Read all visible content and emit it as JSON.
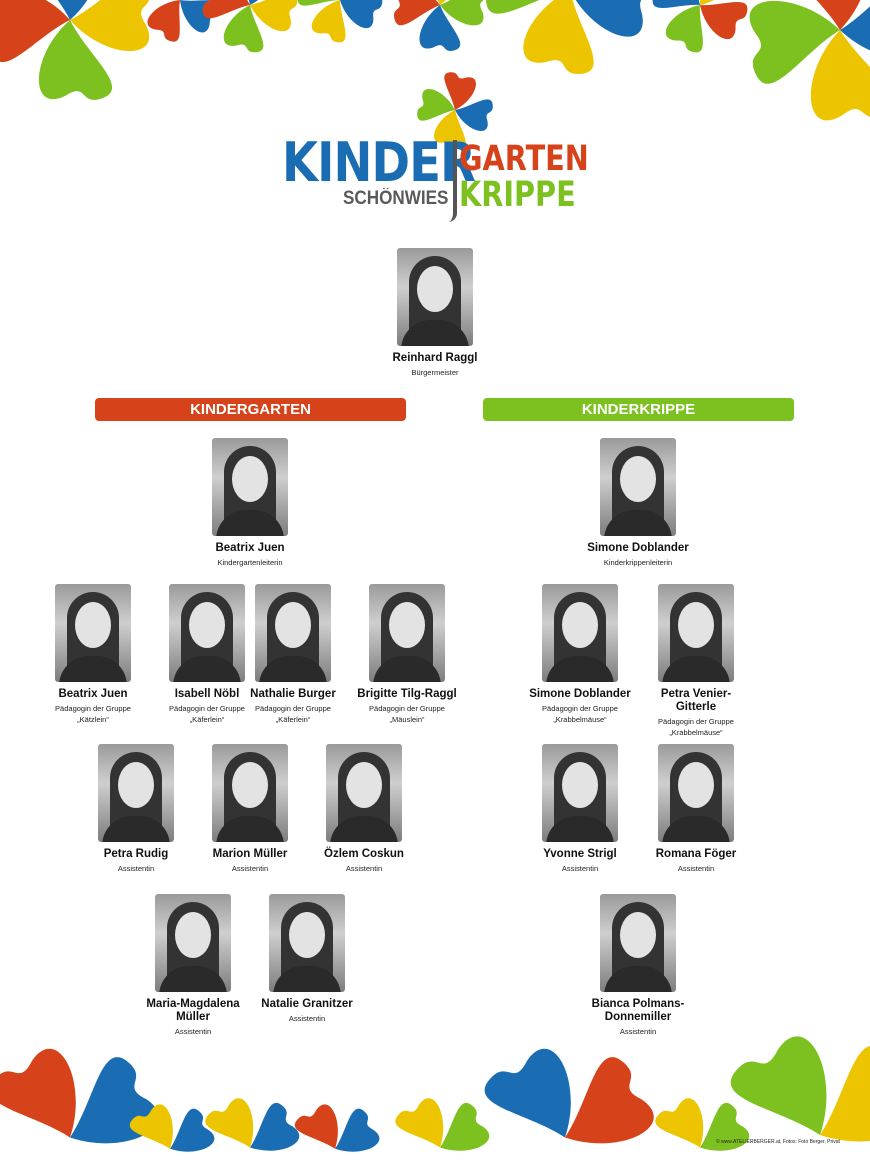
{
  "logo": {
    "kinder": "KINDER",
    "schoenwies": "SCHÖNWIES",
    "garten": "GARTEN",
    "krippe": "KRIPPE"
  },
  "colors": {
    "blue": "#1b6db3",
    "orange": "#d6431a",
    "green": "#7cc11f",
    "yellow": "#ecc500"
  },
  "head": {
    "name": "Reinhard Raggl",
    "role": "Bürgermeister"
  },
  "sections": {
    "kindergarten": "KINDERGARTEN",
    "kinderkrippe": "KINDERKRIPPE"
  },
  "kindergarten": [
    {
      "name": "Beatrix Juen",
      "role": "Kindergartenleiterin"
    },
    {
      "name": "Beatrix Juen",
      "role": "Pädagogin der Gruppe",
      "group": "„Kätzlein“"
    },
    {
      "name": "Isabell Nöbl",
      "role": "Pädagogin der Gruppe",
      "group": "„Käferlein“"
    },
    {
      "name": "Nathalie Burger",
      "role": "Pädagogin der Gruppe",
      "group": "„Käferlein“"
    },
    {
      "name": "Brigitte Tilg-Raggl",
      "role": "Pädagogin der Gruppe",
      "group": "„Mäuslein“"
    },
    {
      "name": "Petra Rudig",
      "role": "Assistentin"
    },
    {
      "name": "Marion Müller",
      "role": "Assistentin"
    },
    {
      "name": "Özlem Coskun",
      "role": "Assistentin"
    },
    {
      "name": "Maria-Magdalena Müller",
      "role": "Assistentin"
    },
    {
      "name": "Natalie Granitzer",
      "role": "Assistentin"
    }
  ],
  "kinderkrippe": [
    {
      "name": "Simone Doblander",
      "role": "Kinderkrippenleiterin"
    },
    {
      "name": "Simone Doblander",
      "role": "Pädagogin der Gruppe",
      "group": "„Krabbelmäuse“"
    },
    {
      "name": "Petra Venier-Gitterle",
      "role": "Pädagogin der Gruppe",
      "group": "„Krabbelmäuse“"
    },
    {
      "name": "Yvonne Strigl",
      "role": "Assistentin"
    },
    {
      "name": "Romana Föger",
      "role": "Assistentin"
    },
    {
      "name": "Bianca Polmans-Donnemiller",
      "role": "Assistentin"
    }
  ],
  "credit": "© www.ATELIERBERGER.at, Fotos: Foto Berger, Privat"
}
